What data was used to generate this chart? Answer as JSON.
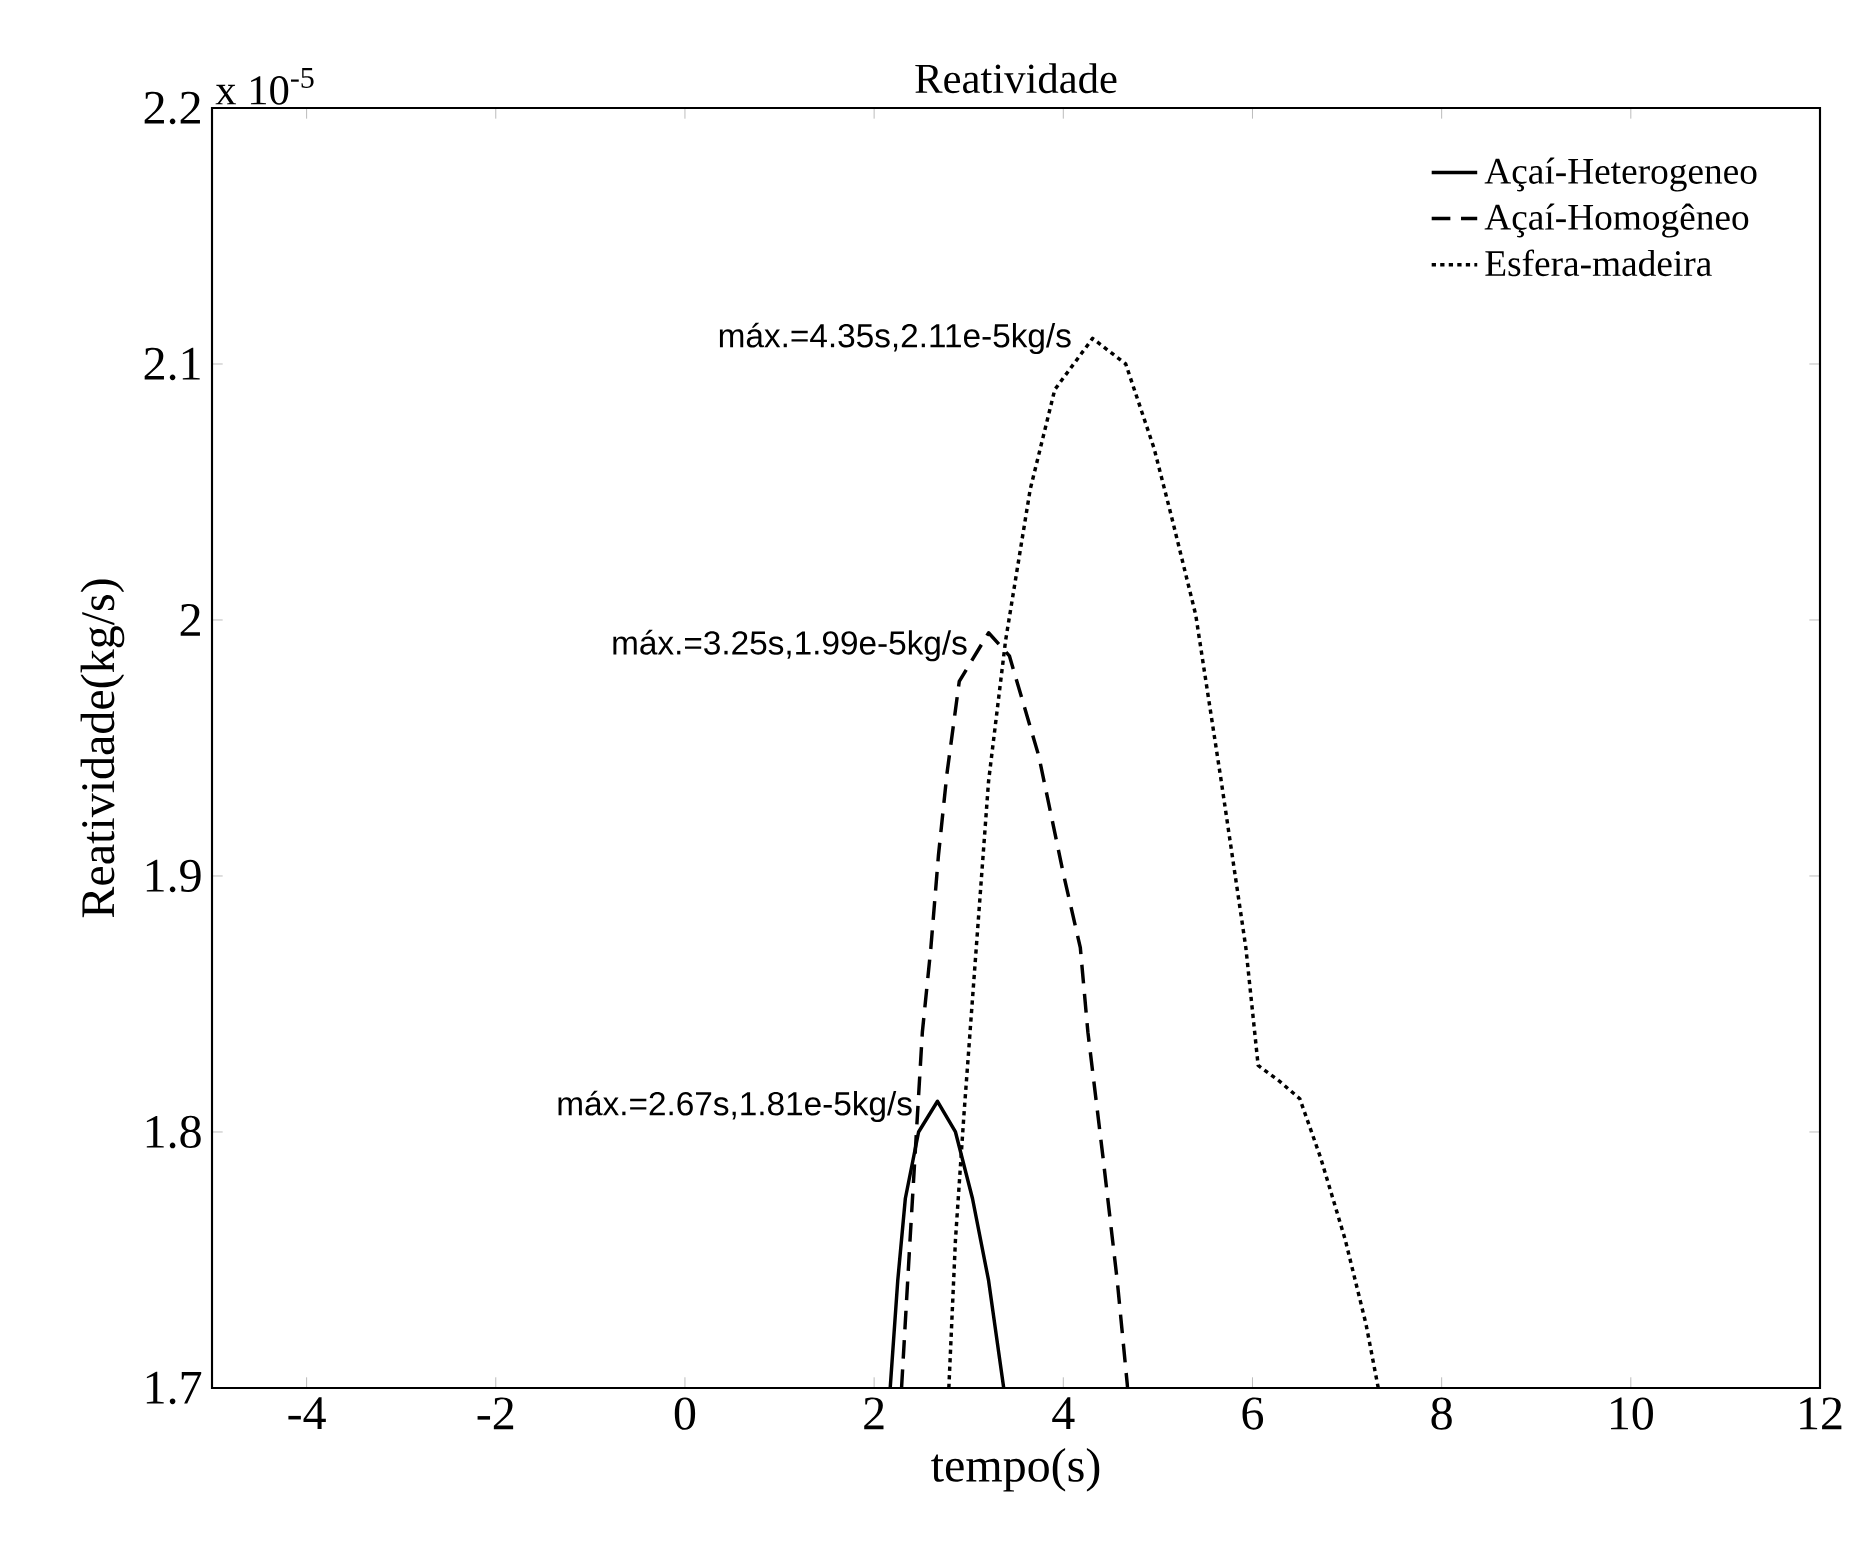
{
  "chart_data": {
    "type": "line",
    "title": "Reatividade",
    "xlabel": "tempo(s)",
    "ylabel": "Reatividade(kg/s)",
    "xlim": [
      -5,
      12
    ],
    "ylim": [
      1.7,
      2.2
    ],
    "xticks": [
      -4,
      -2,
      0,
      2,
      4,
      6,
      8,
      10,
      12
    ],
    "yticks": [
      1.7,
      1.8,
      1.9,
      2,
      2.1,
      2.2
    ],
    "legend": "top right",
    "marker": "none",
    "series": [
      {
        "name": "Açaí-Heterogeneo",
        "color": "#000000",
        "line_style": "solid",
        "x": [
          2.17,
          2.25,
          2.33,
          2.47,
          2.67,
          2.86,
          3.04,
          3.21,
          3.37
        ],
        "values": [
          1.7,
          1.742,
          1.774,
          1.8,
          1.812,
          1.8,
          1.774,
          1.742,
          1.7
        ]
      },
      {
        "name": "Açaí-Homogêneo",
        "color": "#000000",
        "line_style": "dashed",
        "x": [
          2.29,
          2.38,
          2.51,
          2.6,
          2.68,
          2.77,
          2.9,
          3.21,
          3.43,
          3.74,
          4.0,
          4.18,
          4.26,
          4.42,
          4.57,
          4.68
        ],
        "values": [
          1.7,
          1.758,
          1.839,
          1.872,
          1.908,
          1.94,
          1.976,
          1.995,
          1.986,
          1.947,
          1.901,
          1.872,
          1.839,
          1.79,
          1.742,
          1.7
        ]
      },
      {
        "name": "Esfera-madeira",
        "color": "#000000",
        "line_style": "dotted",
        "x": [
          2.79,
          2.86,
          2.95,
          3.08,
          3.21,
          3.39,
          3.65,
          3.91,
          4.31,
          4.66,
          4.96,
          5.14,
          5.4,
          5.67,
          5.93,
          6.06,
          6.28,
          6.5,
          6.72,
          6.98,
          7.2,
          7.33
        ],
        "values": [
          1.7,
          1.758,
          1.807,
          1.872,
          1.937,
          1.992,
          2.051,
          2.09,
          2.11,
          2.1,
          2.067,
          2.041,
          2.002,
          1.937,
          1.872,
          1.826,
          1.82,
          1.813,
          1.79,
          1.758,
          1.725,
          1.7
        ]
      }
    ],
    "annotations": [
      "x 10$^{-5}$",
      {
        "text": "máx.=2.67s,1.81e-5kg/s",
        "x": 2.67,
        "y": 1.81
      },
      {
        "text": "máx.=3.25s,1.99e-5kg/s",
        "x": 3.25,
        "y": 1.99
      },
      {
        "text": "máx.=4.35s,2.11e-5kg/s",
        "x": 4.35,
        "y": 2.11
      }
    ]
  }
}
